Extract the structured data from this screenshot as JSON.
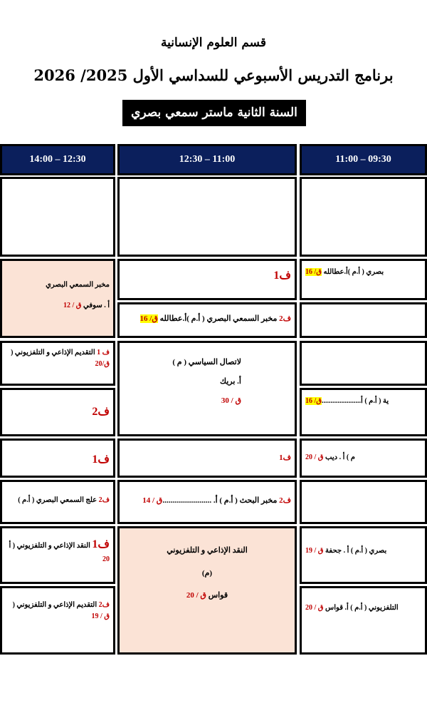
{
  "title": {
    "department": "قسم العلوم الإنسانية",
    "program": "برنامج التدريس الأسبوعي للسداسي الأول 2025/ 2026",
    "level": "السنة الثانية ماستر سمعي بصري"
  },
  "colors": {
    "header_bg": "#0b1f5c",
    "merged_bg": "#fbe3d6",
    "room_red": "#c00000",
    "highlight": "#ffff00"
  },
  "headers": {
    "left": "14:00 – 12:30",
    "middle": "12:30 – 11:00",
    "right": "11:00 – 09:30"
  },
  "cells": {
    "r1L": [],
    "r1M": [],
    "r1R": [],
    "r2L": [
      [
        [
          "مخبر السمعي البصري",
          ""
        ]
      ],
      [
        [
          "أ . سوفي ",
          ""
        ],
        [
          "ق / 12",
          "red"
        ]
      ]
    ],
    "r2Ma": [
      [
        [
          "ف1",
          "big"
        ]
      ]
    ],
    "r2Mb": [
      [
        [
          "ف2",
          "red"
        ],
        [
          " مخبر السمعي البصري ( أ.م )أ.عطالله  ",
          ""
        ],
        [
          "ق/ 16",
          "hl"
        ]
      ]
    ],
    "r2Ra": [
      [
        [
          "بصري ( أ.م )أ.عطالله  ",
          ""
        ],
        [
          "ق/ 16",
          "hl"
        ]
      ]
    ],
    "r2Rb": [],
    "r3La": [
      [
        [
          "ف 1",
          "red"
        ],
        [
          "  التقديم الإذاعي و التلفزيوني (",
          ""
        ]
      ],
      [
        [
          "ق/20",
          "red"
        ]
      ]
    ],
    "r3Lb": [
      [
        [
          "ف2",
          "big"
        ]
      ]
    ],
    "r3M": [
      [
        [
          "لاتصال السياسي ( م )",
          ""
        ]
      ],
      [
        [
          "أ.    بريك",
          ""
        ]
      ],
      [
        [
          "ق / 30",
          "red"
        ]
      ]
    ],
    "r3Ra": [],
    "r3Rb": [
      [
        [
          "ية ( أ.م ) أ......................",
          ""
        ],
        [
          "ق/ 16",
          "hl"
        ]
      ]
    ],
    "r4L": [
      [
        [
          "ف1",
          "big"
        ]
      ]
    ],
    "r4M": [
      [
        [
          "ف1",
          "red"
        ]
      ]
    ],
    "r4R": [
      [
        [
          "م ) أ . ديب  ",
          ""
        ],
        [
          "ق / 20",
          "red"
        ]
      ]
    ],
    "r5L": [
      [
        [
          "ف2",
          "red"
        ],
        [
          "  علج السمعي البصري ( أ.م )",
          ""
        ]
      ]
    ],
    "r5M": [
      [
        [
          "ف2",
          "red"
        ],
        [
          "   مخبر البحث ( أ.م ) أ. .........................",
          ""
        ],
        [
          "ق / 14",
          "red"
        ]
      ]
    ],
    "r5R": [],
    "r6La": [
      [
        [
          "ف1",
          "big"
        ],
        [
          "  النقد الإذاعي و التلفزيوني ( أ",
          ""
        ]
      ],
      [
        [
          "20",
          "red"
        ]
      ]
    ],
    "r6Lb": [
      [
        [
          "ف2",
          "red"
        ],
        [
          " التقديم الإذاعي و التلفزيوني (",
          ""
        ]
      ],
      [
        [
          "ق / 19",
          "red"
        ]
      ]
    ],
    "r6M": [
      [
        [
          "النقد الإذاعي و التلفزيوني",
          ""
        ]
      ],
      [
        [
          "(م)",
          ""
        ]
      ],
      [
        [
          "قواس  ",
          ""
        ],
        [
          "ق / 20",
          "red"
        ]
      ]
    ],
    "r6Ra": [
      [
        [
          "بصري ( أ.م ) أ . جحفة ",
          ""
        ],
        [
          "ق / 19",
          "red"
        ]
      ]
    ],
    "r6Rb": [
      [
        [
          "التلفزيوني ( أ.م ) أ. قواس ",
          ""
        ],
        [
          "ق / 20",
          "red"
        ]
      ]
    ]
  }
}
